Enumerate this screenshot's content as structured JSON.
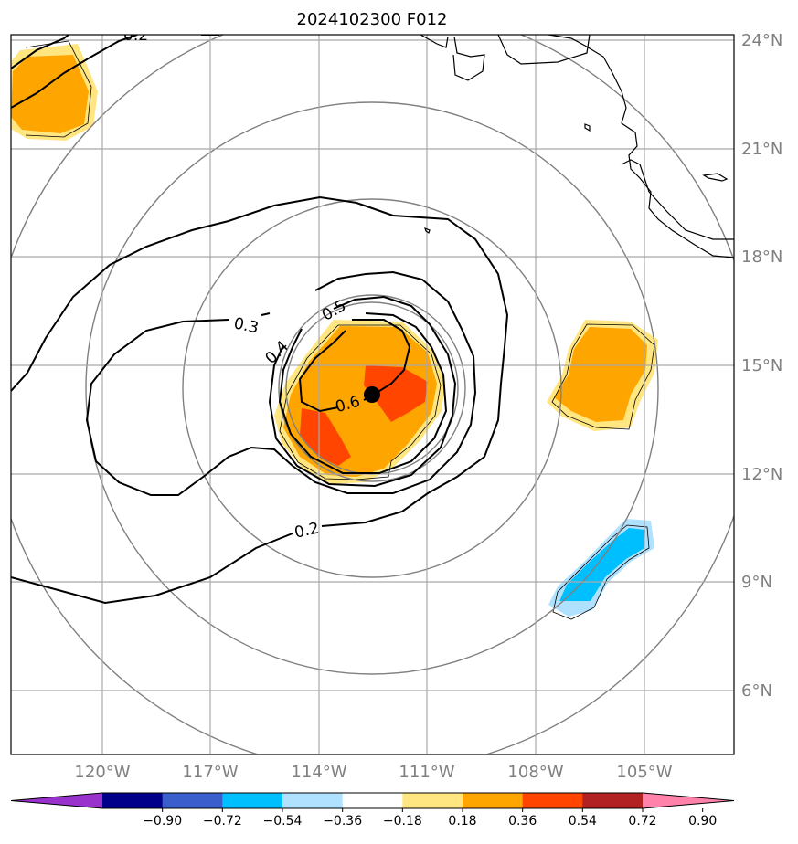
{
  "title": "2024102300 F012",
  "map": {
    "lon_range": [
      -122.5,
      -102.5
    ],
    "lat_range": [
      4.0,
      24.5
    ],
    "lon_ticks": [
      "120°W",
      "117°W",
      "114°W",
      "111°W",
      "108°W",
      "105°W"
    ],
    "lat_ticks": [
      "24°N",
      "21°N",
      "18°N",
      "15°N",
      "12°N",
      "9°N",
      "6°N"
    ],
    "storm_center": {
      "lon": -112.5,
      "lat": 14.2
    },
    "range_rings": "concentric gray circles around storm center",
    "contour_labels": [
      "0.2",
      "0.3",
      "0.4",
      "0.5",
      "0.6",
      "0.2"
    ]
  },
  "colorbar": {
    "ticks": [
      "−0.90",
      "−0.72",
      "−0.54",
      "−0.36",
      "−0.18",
      "0.18",
      "0.36",
      "0.54",
      "0.72",
      "0.90"
    ],
    "colors": [
      "#9932cc",
      "#00008b",
      "#3a5fcd",
      "#00bfff",
      "#b0e2ff",
      "#ffffff",
      "#ffe680",
      "#ffa500",
      "#ff4500",
      "#b22222",
      "#ff82ab"
    ],
    "extend": "both"
  },
  "fill_colors": {
    "light_yellow": "#ffe680",
    "orange": "#ffa500",
    "red_orange": "#ff4500",
    "light_blue": "#b0e2ff",
    "deep_sky_blue": "#00bfff"
  }
}
